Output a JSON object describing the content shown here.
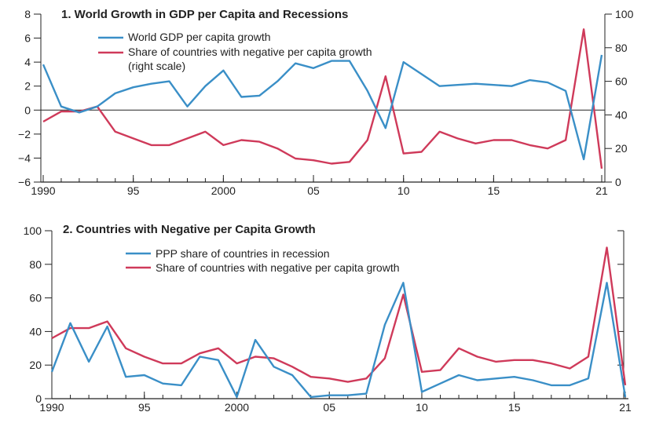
{
  "colors": {
    "blue": "#3a8fc7",
    "red": "#cf3a5a",
    "axis": "#222222"
  },
  "chart_data": [
    {
      "type": "line",
      "title": "1. World Growth in GDP per Capita and Recessions",
      "x_tick_labels": [
        "1990",
        "95",
        "2000",
        "05",
        "10",
        "15",
        "21"
      ],
      "x_tick_years": [
        1990,
        1995,
        2000,
        2005,
        2010,
        2015,
        2021
      ],
      "xlim": [
        1990,
        2021
      ],
      "ylim_left": [
        -6,
        8
      ],
      "y_ticks_left": [
        8,
        6,
        4,
        2,
        0,
        -2,
        -4,
        -6
      ],
      "y_tick_labels_left": [
        "8",
        "6",
        "4",
        "2",
        "0",
        "−2",
        "−4",
        "−6"
      ],
      "ylim_right": [
        0,
        100
      ],
      "y_ticks_right": [
        100,
        80,
        60,
        40,
        20,
        0
      ],
      "y_tick_labels_right": [
        "100",
        "80",
        "60",
        "40",
        "20",
        "0"
      ],
      "zero_line": 0,
      "x": [
        1990,
        1991,
        1992,
        1993,
        1994,
        1995,
        1996,
        1997,
        1998,
        1999,
        2000,
        2001,
        2002,
        2003,
        2004,
        2005,
        2006,
        2007,
        2008,
        2009,
        2010,
        2011,
        2012,
        2013,
        2014,
        2015,
        2016,
        2017,
        2018,
        2019,
        2020,
        2021
      ],
      "series": [
        {
          "name": "World GDP per capita growth",
          "legend_label": "World GDP per capita growth",
          "axis": "left",
          "color": "blue",
          "values": [
            3.8,
            0.3,
            -0.2,
            0.3,
            1.4,
            1.9,
            2.2,
            2.4,
            0.3,
            2.0,
            3.3,
            1.1,
            1.2,
            2.4,
            3.9,
            3.5,
            4.1,
            4.1,
            1.6,
            -1.5,
            4.0,
            3.0,
            2.0,
            2.1,
            2.2,
            2.1,
            2.0,
            2.5,
            2.3,
            1.6,
            -4.1,
            4.6
          ]
        },
        {
          "name": "Share of countries with negative per capita growth",
          "legend_label": "Share of countries with negative per capita growth",
          "legend_label_2": "(right scale)",
          "axis": "right",
          "color": "red",
          "values": [
            36,
            42,
            42,
            45,
            30,
            26,
            22,
            22,
            26,
            30,
            22,
            25,
            24,
            20,
            14,
            13,
            11,
            12,
            25,
            63,
            17,
            18,
            30,
            26,
            23,
            25,
            25,
            22,
            20,
            25,
            91,
            8
          ]
        }
      ]
    },
    {
      "type": "line",
      "title": "2. Countries with Negative per Capita Growth",
      "x_tick_labels": [
        "1990",
        "95",
        "2000",
        "05",
        "10",
        "15",
        "21"
      ],
      "x_tick_years": [
        1990,
        1995,
        2000,
        2005,
        2010,
        2015,
        2021
      ],
      "xlim": [
        1990,
        2021
      ],
      "ylim": [
        0,
        100
      ],
      "y_ticks": [
        100,
        80,
        60,
        40,
        20,
        0
      ],
      "y_tick_labels": [
        "100",
        "80",
        "60",
        "40",
        "20",
        "0"
      ],
      "x": [
        1990,
        1991,
        1992,
        1993,
        1994,
        1995,
        1996,
        1997,
        1998,
        1999,
        2000,
        2001,
        2002,
        2003,
        2004,
        2005,
        2006,
        2007,
        2008,
        2009,
        2010,
        2011,
        2012,
        2013,
        2014,
        2015,
        2016,
        2017,
        2018,
        2019,
        2020,
        2021
      ],
      "series": [
        {
          "name": "Share of countries with negative per capita growth",
          "legend_label": "Share of countries with negative per capita growth",
          "color": "red",
          "values": [
            36,
            42,
            42,
            46,
            30,
            25,
            21,
            21,
            27,
            30,
            21,
            25,
            24,
            19,
            13,
            12,
            10,
            12,
            24,
            62,
            16,
            17,
            30,
            25,
            22,
            23,
            23,
            21,
            18,
            25,
            90,
            8
          ]
        },
        {
          "name": "PPP share of countries in recession",
          "legend_label": "PPP share of countries in recession",
          "color": "blue",
          "values": [
            16,
            45,
            22,
            43,
            13,
            14,
            9,
            8,
            25,
            23,
            1,
            35,
            19,
            14,
            1,
            2,
            2,
            3,
            44,
            69,
            4,
            9,
            14,
            11,
            12,
            13,
            11,
            8,
            8,
            12,
            69,
            1
          ]
        }
      ]
    }
  ]
}
